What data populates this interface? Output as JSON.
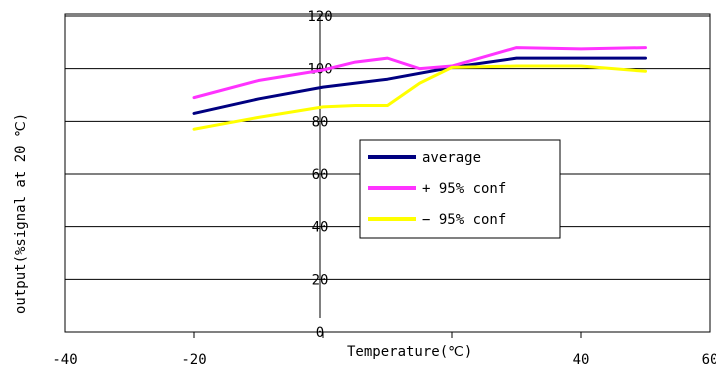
{
  "chart_data": {
    "type": "line",
    "title": "",
    "xlabel": "Temperature(℃)",
    "ylabel": "output(%signal at 20 ℃)",
    "xlim": [
      -40,
      60
    ],
    "ylim": [
      0,
      120
    ],
    "xticks": [
      "-40",
      "-20",
      "0",
      "20",
      "40",
      "60"
    ],
    "yticks": [
      "0",
      "20",
      "40",
      "60",
      "80",
      "100",
      "120"
    ],
    "grid": "horizontal",
    "legend_position": "center-right",
    "series": [
      {
        "name": "average",
        "color": "#000080",
        "x": [
          -20,
          -10,
          0,
          10,
          20,
          30,
          40,
          50
        ],
        "y": [
          83,
          88.5,
          93,
          96,
          100.5,
          104,
          104,
          104
        ]
      },
      {
        "name": "+ 95% conf",
        "color": "#ff33ff",
        "x": [
          -20,
          -10,
          0,
          5,
          10,
          15,
          20,
          30,
          40,
          50
        ],
        "y": [
          89,
          95.5,
          99.5,
          102.5,
          104,
          100,
          101,
          108,
          107.5,
          108
        ]
      },
      {
        "name": "− 95% conf",
        "color": "#ffff00",
        "x": [
          -20,
          -10,
          0,
          5,
          10,
          15,
          20,
          30,
          40,
          50
        ],
        "y": [
          77,
          81.5,
          85.5,
          86,
          86,
          94.5,
          100.5,
          101,
          101,
          99
        ]
      }
    ]
  }
}
